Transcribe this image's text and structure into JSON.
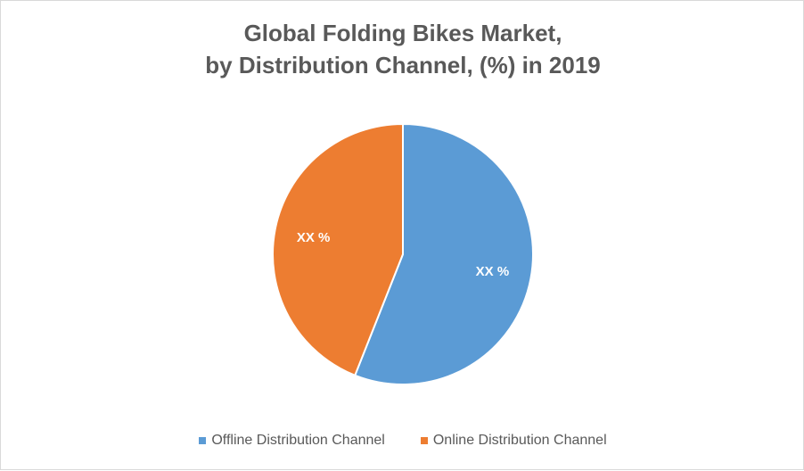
{
  "chart_data": {
    "type": "pie",
    "title_lines": [
      "Global Folding Bikes Market,",
      "by Distribution Channel, (%) in 2019"
    ],
    "categories": [
      "Offline Distribution Channel",
      "Online Distribution Channel"
    ],
    "values": [
      56,
      44
    ],
    "data_labels": [
      "XX %",
      "XX %"
    ],
    "colors": [
      "#5b9bd5",
      "#ed7d31"
    ],
    "legend_position": "bottom"
  }
}
